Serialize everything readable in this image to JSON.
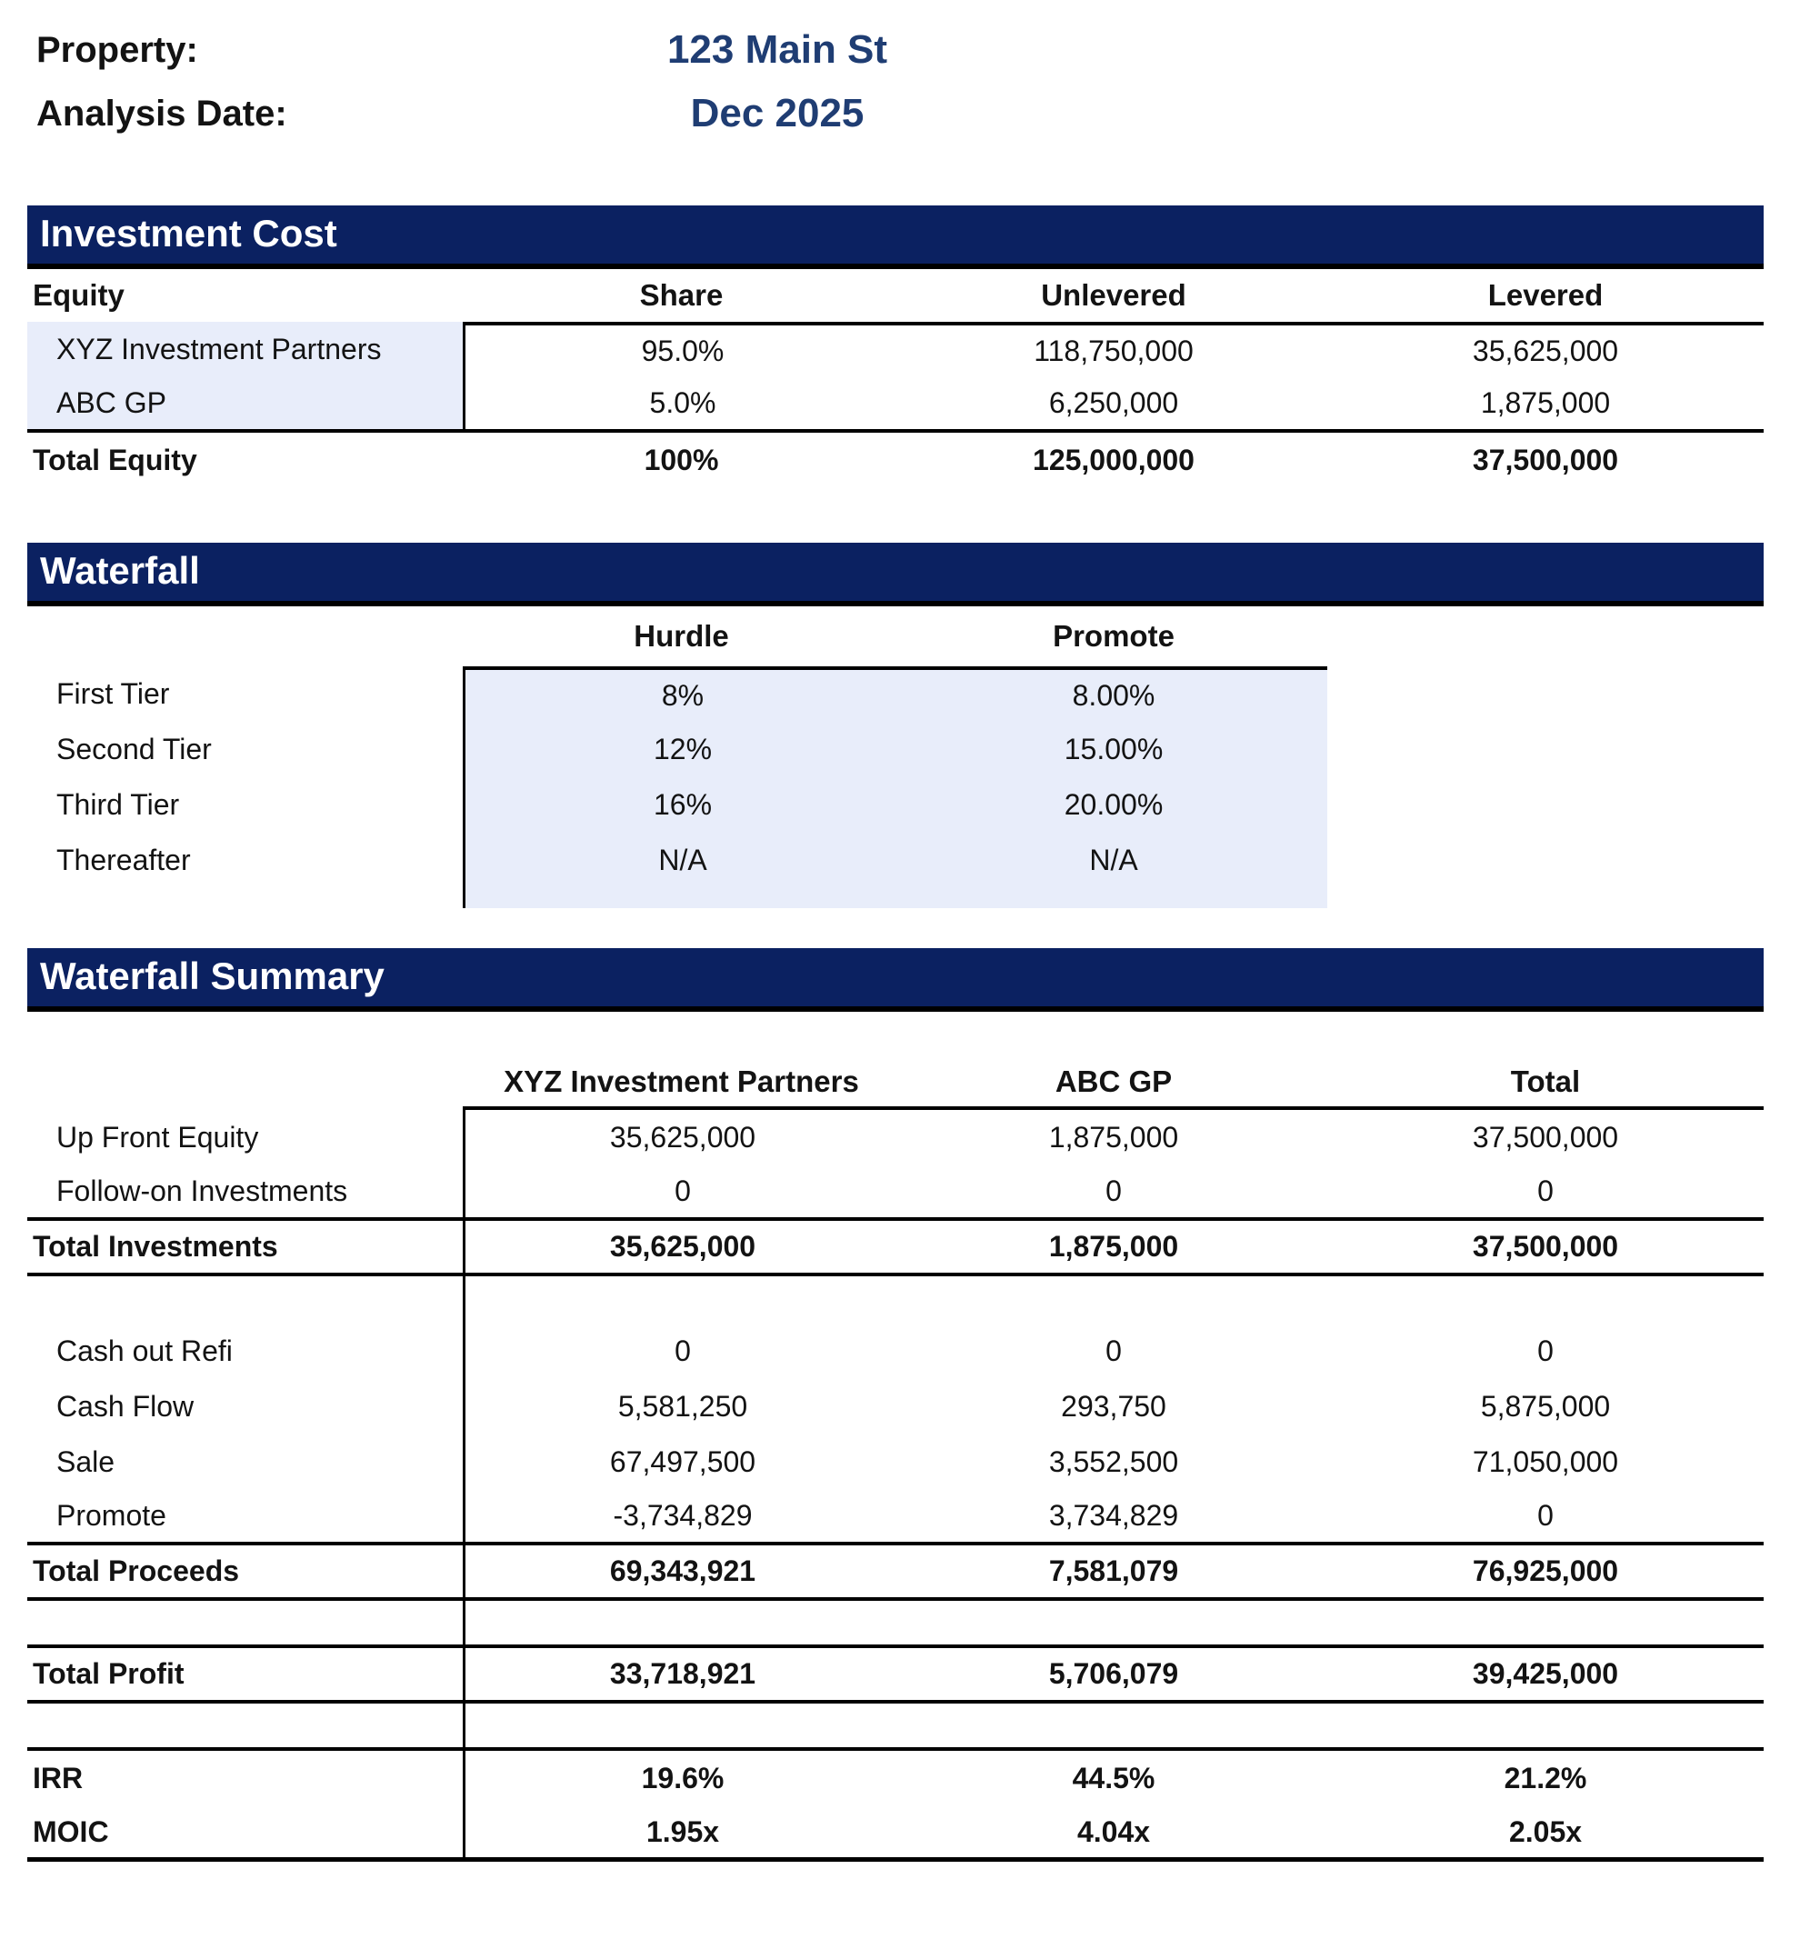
{
  "meta": {
    "property_label": "Property:",
    "property_value": "123 Main St",
    "analysis_date_label": "Analysis Date:",
    "analysis_date_value": "Dec 2025"
  },
  "colors": {
    "navy_bar": "#0B2161",
    "accent_text": "#1F3D73",
    "input_fill": "#E8EDFA",
    "border": "#000000"
  },
  "investment_cost": {
    "title": "Investment Cost",
    "headers": {
      "label": "Equity",
      "share": "Share",
      "unlevered": "Unlevered",
      "levered": "Levered"
    },
    "rows": [
      {
        "label": "XYZ Investment Partners",
        "share": "95.0%",
        "unlevered": "118,750,000",
        "levered": "35,625,000"
      },
      {
        "label": "ABC GP",
        "share": "5.0%",
        "unlevered": "6,250,000",
        "levered": "1,875,000"
      }
    ],
    "total": {
      "label": "Total Equity",
      "share": "100%",
      "unlevered": "125,000,000",
      "levered": "37,500,000"
    }
  },
  "waterfall": {
    "title": "Waterfall",
    "headers": {
      "hurdle": "Hurdle",
      "promote": "Promote"
    },
    "rows": [
      {
        "label": "First Tier",
        "hurdle": "8%",
        "promote": "8.00%"
      },
      {
        "label": "Second Tier",
        "hurdle": "12%",
        "promote": "15.00%"
      },
      {
        "label": "Third Tier",
        "hurdle": "16%",
        "promote": "20.00%"
      },
      {
        "label": "Thereafter",
        "hurdle": "N/A",
        "promote": "N/A"
      }
    ]
  },
  "waterfall_summary": {
    "title": "Waterfall Summary",
    "headers": {
      "xyz": "XYZ Investment Partners",
      "abc": "ABC GP",
      "total": "Total"
    },
    "rows_investment": [
      {
        "label": "Up Front Equity",
        "xyz": "35,625,000",
        "abc": "1,875,000",
        "total": "37,500,000"
      },
      {
        "label": "Follow-on Investments",
        "xyz": "0",
        "abc": "0",
        "total": "0"
      }
    ],
    "total_investments": {
      "label": "Total Investments",
      "xyz": "35,625,000",
      "abc": "1,875,000",
      "total": "37,500,000"
    },
    "rows_proceeds": [
      {
        "label": "Cash out Refi",
        "xyz": "0",
        "abc": "0",
        "total": "0"
      },
      {
        "label": "Cash Flow",
        "xyz": "5,581,250",
        "abc": "293,750",
        "total": "5,875,000"
      },
      {
        "label": "Sale",
        "xyz": "67,497,500",
        "abc": "3,552,500",
        "total": "71,050,000"
      },
      {
        "label": "Promote",
        "xyz": "-3,734,829",
        "abc": "3,734,829",
        "total": "0"
      }
    ],
    "total_proceeds": {
      "label": "Total Proceeds",
      "xyz": "69,343,921",
      "abc": "7,581,079",
      "total": "76,925,000"
    },
    "total_profit": {
      "label": "Total Profit",
      "xyz": "33,718,921",
      "abc": "5,706,079",
      "total": "39,425,000"
    },
    "irr": {
      "label": "IRR",
      "xyz": "19.6%",
      "abc": "44.5%",
      "total": "21.2%"
    },
    "moic": {
      "label": "MOIC",
      "xyz": "1.95x",
      "abc": "4.04x",
      "total": "2.05x"
    }
  }
}
